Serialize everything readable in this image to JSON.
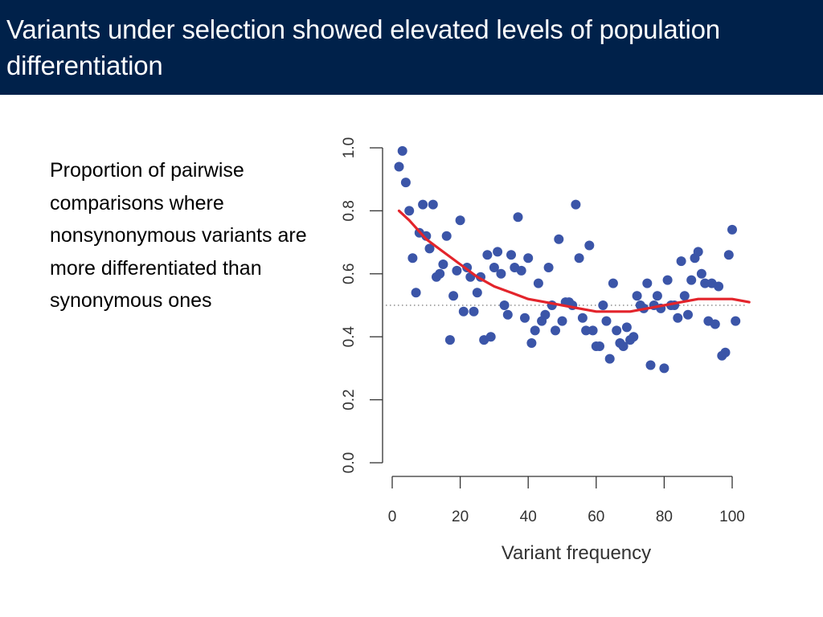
{
  "slide": {
    "title": "Variants under selection showed elevated levels of population differentiation",
    "body": "Proportion of pairwise comparisons where nonsynonymous variants are more differentiated than synonymous ones",
    "colors": {
      "title_bar": "#00214a",
      "title_text": "#ffffff",
      "points": "#3b55a8",
      "fit_line": "#e3242b",
      "reference_line": "#555555"
    }
  },
  "chart_data": {
    "type": "scatter",
    "title": "",
    "xlabel": "Variant frequency",
    "ylabel": "",
    "xlim": [
      0,
      100
    ],
    "ylim": [
      0,
      1.0
    ],
    "x_ticks": [
      "0",
      "20",
      "40",
      "60",
      "80",
      "100"
    ],
    "y_ticks": [
      "0.0",
      "0.2",
      "0.4",
      "0.6",
      "0.8",
      "1.0"
    ],
    "reference_line_y": 0.5,
    "grid": false,
    "legend": "none",
    "points": [
      [
        2,
        0.94
      ],
      [
        3,
        0.99
      ],
      [
        4,
        0.89
      ],
      [
        5,
        0.8
      ],
      [
        6,
        0.65
      ],
      [
        7,
        0.54
      ],
      [
        8,
        0.73
      ],
      [
        9,
        0.82
      ],
      [
        10,
        0.72
      ],
      [
        11,
        0.68
      ],
      [
        12,
        0.82
      ],
      [
        13,
        0.59
      ],
      [
        14,
        0.6
      ],
      [
        15,
        0.63
      ],
      [
        16,
        0.72
      ],
      [
        17,
        0.39
      ],
      [
        18,
        0.53
      ],
      [
        19,
        0.61
      ],
      [
        20,
        0.77
      ],
      [
        21,
        0.48
      ],
      [
        22,
        0.62
      ],
      [
        23,
        0.59
      ],
      [
        24,
        0.48
      ],
      [
        25,
        0.54
      ],
      [
        26,
        0.59
      ],
      [
        27,
        0.39
      ],
      [
        28,
        0.66
      ],
      [
        29,
        0.4
      ],
      [
        30,
        0.62
      ],
      [
        31,
        0.67
      ],
      [
        32,
        0.6
      ],
      [
        33,
        0.5
      ],
      [
        34,
        0.47
      ],
      [
        35,
        0.66
      ],
      [
        36,
        0.62
      ],
      [
        37,
        0.78
      ],
      [
        38,
        0.61
      ],
      [
        39,
        0.46
      ],
      [
        40,
        0.65
      ],
      [
        41,
        0.38
      ],
      [
        42,
        0.42
      ],
      [
        43,
        0.57
      ],
      [
        44,
        0.45
      ],
      [
        45,
        0.47
      ],
      [
        46,
        0.62
      ],
      [
        47,
        0.5
      ],
      [
        48,
        0.42
      ],
      [
        49,
        0.71
      ],
      [
        50,
        0.45
      ],
      [
        51,
        0.51
      ],
      [
        52,
        0.51
      ],
      [
        53,
        0.5
      ],
      [
        54,
        0.82
      ],
      [
        55,
        0.65
      ],
      [
        56,
        0.46
      ],
      [
        57,
        0.42
      ],
      [
        58,
        0.69
      ],
      [
        59,
        0.42
      ],
      [
        60,
        0.37
      ],
      [
        61,
        0.37
      ],
      [
        62,
        0.5
      ],
      [
        63,
        0.45
      ],
      [
        64,
        0.33
      ],
      [
        65,
        0.57
      ],
      [
        66,
        0.42
      ],
      [
        67,
        0.38
      ],
      [
        68,
        0.37
      ],
      [
        69,
        0.43
      ],
      [
        70,
        0.39
      ],
      [
        71,
        0.4
      ],
      [
        72,
        0.53
      ],
      [
        73,
        0.5
      ],
      [
        74,
        0.49
      ],
      [
        75,
        0.57
      ],
      [
        76,
        0.31
      ],
      [
        77,
        0.5
      ],
      [
        78,
        0.53
      ],
      [
        79,
        0.49
      ],
      [
        80,
        0.3
      ],
      [
        81,
        0.58
      ],
      [
        82,
        0.5
      ],
      [
        83,
        0.5
      ],
      [
        84,
        0.46
      ],
      [
        85,
        0.64
      ],
      [
        86,
        0.53
      ],
      [
        87,
        0.47
      ],
      [
        88,
        0.58
      ],
      [
        89,
        0.65
      ],
      [
        90,
        0.67
      ],
      [
        91,
        0.6
      ],
      [
        92,
        0.57
      ],
      [
        93,
        0.45
      ],
      [
        94,
        0.57
      ],
      [
        95,
        0.44
      ],
      [
        96,
        0.56
      ],
      [
        97,
        0.34
      ],
      [
        98,
        0.35
      ],
      [
        99,
        0.66
      ],
      [
        100,
        0.74
      ],
      [
        101,
        0.45
      ]
    ],
    "fit_curve": [
      [
        2,
        0.8
      ],
      [
        5,
        0.77
      ],
      [
        10,
        0.71
      ],
      [
        15,
        0.67
      ],
      [
        20,
        0.63
      ],
      [
        25,
        0.59
      ],
      [
        30,
        0.56
      ],
      [
        35,
        0.54
      ],
      [
        40,
        0.52
      ],
      [
        45,
        0.51
      ],
      [
        50,
        0.5
      ],
      [
        55,
        0.49
      ],
      [
        60,
        0.48
      ],
      [
        65,
        0.48
      ],
      [
        70,
        0.48
      ],
      [
        75,
        0.49
      ],
      [
        80,
        0.5
      ],
      [
        85,
        0.51
      ],
      [
        90,
        0.52
      ],
      [
        95,
        0.52
      ],
      [
        100,
        0.52
      ],
      [
        105,
        0.51
      ]
    ]
  }
}
